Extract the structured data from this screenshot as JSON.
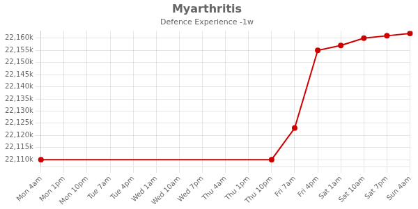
{
  "chart_data": {
    "type": "line",
    "title": "Myarthritis",
    "subtitle": "Defence Experience -1w",
    "categories": [
      "Mon 4am",
      "Mon 1pm",
      "Mon 10pm",
      "Tue 7am",
      "Tue 4pm",
      "Wed 1am",
      "Wed 10am",
      "Wed 7pm",
      "Thu 4am",
      "Thu 1pm",
      "Thu 10pm",
      "Fri 7am",
      "Fri 4pm",
      "Sat 1am",
      "Sat 10am",
      "Sat 7pm",
      "Sun 4am"
    ],
    "series": [
      {
        "color": "#cc0000",
        "marker": "none",
        "values": [
          22110,
          22110,
          22110,
          22110,
          22110,
          22110,
          22110,
          22110,
          22110,
          22110,
          22110,
          22123,
          22155,
          22157,
          22160,
          22161,
          22162
        ]
      },
      {
        "type": "scatter",
        "color": "#cc0000",
        "marker": "circle",
        "values": [
          22110,
          null,
          null,
          null,
          null,
          null,
          null,
          null,
          null,
          null,
          22110,
          22123,
          22155,
          22157,
          22160,
          22161,
          22162
        ]
      }
    ],
    "ylim": [
      22107,
      22163
    ],
    "yticks": [
      {
        "value": 22110,
        "label": "22,110k"
      },
      {
        "value": 22115,
        "label": "22,115k"
      },
      {
        "value": 22120,
        "label": "22,120k"
      },
      {
        "value": 22125,
        "label": "22,125k"
      },
      {
        "value": 22130,
        "label": "22,130k"
      },
      {
        "value": 22135,
        "label": "22,135k"
      },
      {
        "value": 22140,
        "label": "22,140k"
      },
      {
        "value": 22145,
        "label": "22,145k"
      },
      {
        "value": 22150,
        "label": "22,150k"
      },
      {
        "value": 22155,
        "label": "22,155k"
      },
      {
        "value": 22160,
        "label": "22,160k"
      }
    ],
    "grid": true
  }
}
